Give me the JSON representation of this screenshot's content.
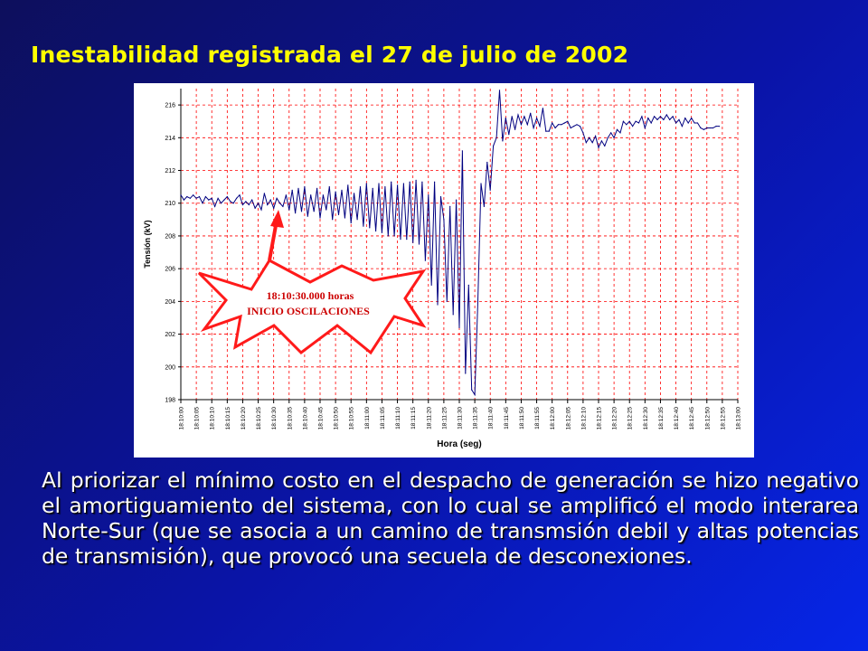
{
  "slide": {
    "title": "Inestabilidad registrada el 27 de julio de 2002",
    "body": "Al priorizar el mínimo costo en el despacho de generación se hizo negativo el amortiguamiento del sistema, con lo cual se amplificó el modo interarea Norte-Sur (que se asocia a un camino de transmsión debil y altas potencias de transmisión), que provocó una secuela de desconexiones."
  },
  "colors": {
    "title": "#ffff00",
    "series": "#000080",
    "grid": "#ff0000",
    "callout_border": "#ff1a1a",
    "callout_text": "#cc0000",
    "arrow": "#ff1a1a"
  },
  "chart_data": {
    "type": "line",
    "title": "",
    "xlabel": "Hora (seg)",
    "ylabel": "Tensión (kV)",
    "ylim": [
      198,
      217
    ],
    "yticks": [
      198,
      200,
      202,
      204,
      206,
      208,
      210,
      212,
      214,
      216
    ],
    "xticks": [
      "18:10:00",
      "18:10:05",
      "18:10:10",
      "18:10:15",
      "18:10:20",
      "18:10:25",
      "18:10:30",
      "18:10:35",
      "18:10:40",
      "18:10:45",
      "18:10:50",
      "18:10:55",
      "18:11:00",
      "18:11:05",
      "18:11:10",
      "18:11:15",
      "18:11:20",
      "18:11:25",
      "18:11:30",
      "18:11:35",
      "18:11:40",
      "18:11:45",
      "18:11:50",
      "18:11:55",
      "18:12:00",
      "18:12:05",
      "18:12:10",
      "18:12:15",
      "18:12:20",
      "18:12:25",
      "18:12:30",
      "18:12:35",
      "18:12:40",
      "18:12:45",
      "18:12:50",
      "18:12:55",
      "18:13:00"
    ],
    "grid": "dashed",
    "legend": "none",
    "series": [
      {
        "points": [
          [
            0,
            210.5
          ],
          [
            1,
            210.2
          ],
          [
            2,
            210.4
          ],
          [
            3,
            210.3
          ],
          [
            4,
            210.5
          ],
          [
            5,
            210.3
          ],
          [
            6,
            210.4
          ],
          [
            7,
            210.0
          ],
          [
            8,
            210.4
          ],
          [
            9,
            210.2
          ],
          [
            10,
            210.3
          ],
          [
            11,
            209.8
          ],
          [
            12,
            210.3
          ],
          [
            13,
            210.0
          ],
          [
            14,
            210.2
          ],
          [
            15,
            210.4
          ],
          [
            16,
            210.1
          ],
          [
            17,
            210.0
          ],
          [
            18,
            210.3
          ],
          [
            19,
            210.5
          ],
          [
            20,
            209.9
          ],
          [
            21,
            210.1
          ],
          [
            22,
            209.9
          ],
          [
            23,
            210.2
          ],
          [
            24,
            209.7
          ],
          [
            25,
            210.0
          ],
          [
            26,
            209.6
          ],
          [
            27,
            210.6
          ],
          [
            28,
            209.9
          ],
          [
            29,
            210.2
          ],
          [
            30,
            209.7
          ],
          [
            31,
            210.3
          ],
          [
            32,
            210.0
          ],
          [
            33,
            209.8
          ],
          [
            34,
            210.5
          ],
          [
            35,
            209.6
          ],
          [
            36,
            210.8
          ],
          [
            37,
            209.4
          ],
          [
            38,
            210.9
          ],
          [
            39,
            209.5
          ],
          [
            40,
            211.0
          ],
          [
            41,
            209.2
          ],
          [
            42,
            210.5
          ],
          [
            43,
            209.5
          ],
          [
            44,
            210.9
          ],
          [
            45,
            209.1
          ],
          [
            46,
            210.5
          ],
          [
            47,
            209.6
          ],
          [
            48,
            211.0
          ],
          [
            49,
            209.0
          ],
          [
            50,
            210.7
          ],
          [
            51,
            209.3
          ],
          [
            52,
            210.8
          ],
          [
            53,
            209.1
          ],
          [
            54,
            211.1
          ],
          [
            55,
            208.8
          ],
          [
            56,
            210.6
          ],
          [
            57,
            209.0
          ],
          [
            58,
            211.0
          ],
          [
            59,
            208.6
          ],
          [
            60,
            211.2
          ],
          [
            61,
            208.5
          ],
          [
            62,
            210.9
          ],
          [
            63,
            208.3
          ],
          [
            64,
            211.2
          ],
          [
            65,
            208.2
          ],
          [
            66,
            211.0
          ],
          [
            67,
            208.0
          ],
          [
            68,
            211.3
          ],
          [
            69,
            208.0
          ],
          [
            70,
            211.1
          ],
          [
            71,
            207.8
          ],
          [
            72,
            211.2
          ],
          [
            73,
            207.8
          ],
          [
            74,
            211.3
          ],
          [
            75,
            207.6
          ],
          [
            76,
            211.4
          ],
          [
            77,
            207.5
          ],
          [
            78,
            211.3
          ],
          [
            79,
            206.5
          ],
          [
            80,
            210.5
          ],
          [
            81,
            205.0
          ],
          [
            82,
            211.3
          ],
          [
            83,
            203.8
          ],
          [
            84,
            210.4
          ],
          [
            85,
            209.0
          ],
          [
            86,
            204.0
          ],
          [
            87,
            209.8
          ],
          [
            88,
            203.2
          ],
          [
            89,
            210.2
          ],
          [
            90,
            202.4
          ],
          [
            91,
            213.2
          ],
          [
            92,
            199.6
          ],
          [
            93,
            205.0
          ],
          [
            94,
            198.6
          ],
          [
            95,
            198.3
          ],
          [
            96,
            204.0
          ],
          [
            97,
            211.2
          ],
          [
            98,
            209.8
          ],
          [
            99,
            212.5
          ],
          [
            100,
            210.8
          ],
          [
            101,
            213.5
          ],
          [
            102,
            214.0
          ],
          [
            103,
            216.9
          ],
          [
            104,
            213.8
          ],
          [
            105,
            215.2
          ],
          [
            106,
            214.2
          ],
          [
            107,
            215.3
          ],
          [
            108,
            214.5
          ],
          [
            109,
            215.4
          ],
          [
            110,
            214.8
          ],
          [
            111,
            215.3
          ],
          [
            112,
            214.8
          ],
          [
            113,
            215.5
          ],
          [
            114,
            214.6
          ],
          [
            115,
            215.2
          ],
          [
            116,
            214.7
          ],
          [
            117,
            215.8
          ],
          [
            118,
            214.4
          ],
          [
            119,
            214.4
          ],
          [
            120,
            214.9
          ],
          [
            121,
            214.6
          ],
          [
            122,
            214.8
          ],
          [
            123,
            214.8
          ],
          [
            124,
            214.9
          ],
          [
            125,
            215.0
          ],
          [
            126,
            214.6
          ],
          [
            127,
            214.7
          ],
          [
            128,
            214.8
          ],
          [
            129,
            214.7
          ],
          [
            130,
            214.3
          ],
          [
            131,
            213.7
          ],
          [
            132,
            214.0
          ],
          [
            133,
            213.7
          ],
          [
            134,
            214.1
          ],
          [
            135,
            213.4
          ],
          [
            136,
            213.8
          ],
          [
            137,
            213.5
          ],
          [
            138,
            214.0
          ],
          [
            139,
            214.3
          ],
          [
            140,
            214.0
          ],
          [
            141,
            214.5
          ],
          [
            142,
            214.3
          ],
          [
            143,
            215.0
          ],
          [
            144,
            214.8
          ],
          [
            145,
            215.0
          ],
          [
            146,
            214.7
          ],
          [
            147,
            215.0
          ],
          [
            148,
            214.9
          ],
          [
            149,
            215.3
          ],
          [
            150,
            214.6
          ],
          [
            151,
            215.2
          ],
          [
            152,
            214.9
          ],
          [
            153,
            215.3
          ],
          [
            154,
            215.1
          ],
          [
            155,
            215.3
          ],
          [
            156,
            215.1
          ],
          [
            157,
            215.4
          ],
          [
            158,
            215.1
          ],
          [
            159,
            215.3
          ],
          [
            160,
            214.9
          ],
          [
            161,
            215.1
          ],
          [
            162,
            214.7
          ],
          [
            163,
            215.2
          ],
          [
            164,
            214.9
          ],
          [
            165,
            215.2
          ],
          [
            166,
            214.9
          ],
          [
            167,
            214.9
          ],
          [
            168,
            214.6
          ],
          [
            169,
            214.5
          ],
          [
            170,
            214.6
          ],
          [
            171,
            214.6
          ],
          [
            172,
            214.6
          ],
          [
            173,
            214.7
          ],
          [
            174,
            214.7
          ]
        ],
        "x_unit": "seconds after 18:10:00"
      }
    ],
    "annotations": {
      "time": "18:10:30.000 horas",
      "label": "INICIO OSCILACIONES"
    }
  }
}
